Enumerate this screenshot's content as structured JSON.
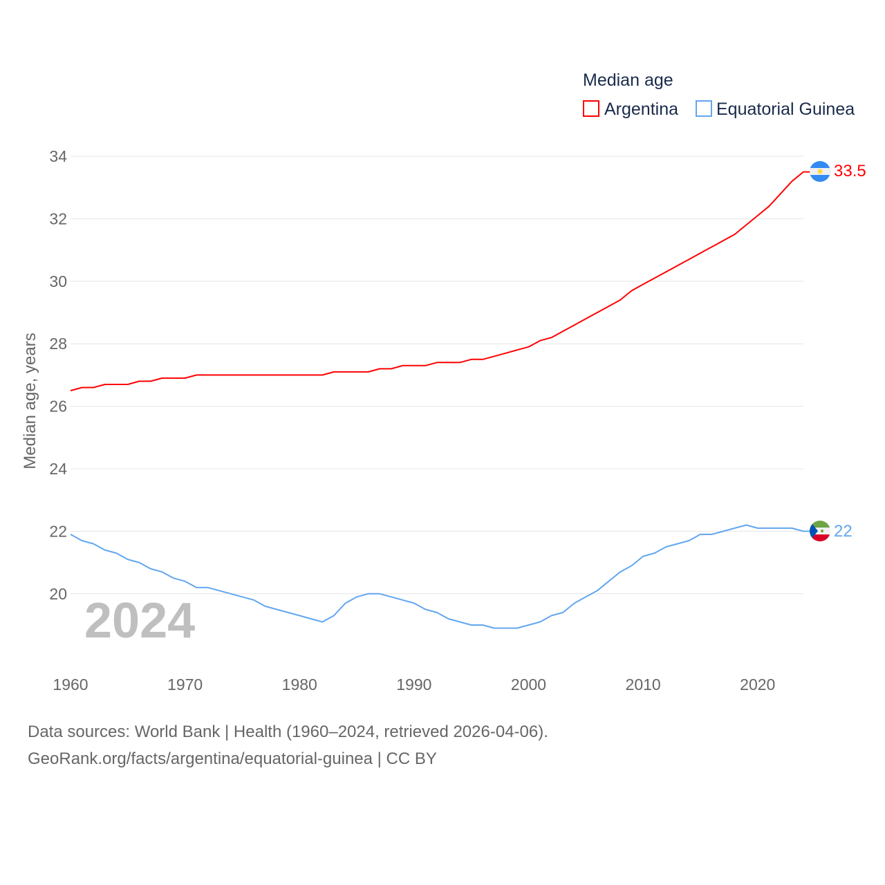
{
  "chart_data": {
    "type": "line",
    "title": "Median age",
    "xlabel": "",
    "ylabel": "Median age, years",
    "xlim": [
      1960,
      2024
    ],
    "ylim": [
      18.5,
      34
    ],
    "yticks": [
      20,
      22,
      24,
      26,
      28,
      30,
      32,
      34
    ],
    "xticks": [
      1960,
      1970,
      1980,
      1990,
      2000,
      2010,
      2020
    ],
    "grid": true,
    "legend_position": "top-right",
    "year_label": "2024",
    "x": [
      1960,
      1961,
      1962,
      1963,
      1964,
      1965,
      1966,
      1967,
      1968,
      1969,
      1970,
      1971,
      1972,
      1973,
      1974,
      1975,
      1976,
      1977,
      1978,
      1979,
      1980,
      1981,
      1982,
      1983,
      1984,
      1985,
      1986,
      1987,
      1988,
      1989,
      1990,
      1991,
      1992,
      1993,
      1994,
      1995,
      1996,
      1997,
      1998,
      1999,
      2000,
      2001,
      2002,
      2003,
      2004,
      2005,
      2006,
      2007,
      2008,
      2009,
      2010,
      2011,
      2012,
      2013,
      2014,
      2015,
      2016,
      2017,
      2018,
      2019,
      2020,
      2021,
      2022,
      2023,
      2024
    ],
    "series": [
      {
        "name": "Argentina",
        "color": "#ff0000",
        "end_label": "33.5",
        "values": [
          26.5,
          26.6,
          26.6,
          26.7,
          26.7,
          26.7,
          26.8,
          26.8,
          26.9,
          26.9,
          26.9,
          27.0,
          27.0,
          27.0,
          27.0,
          27.0,
          27.0,
          27.0,
          27.0,
          27.0,
          27.0,
          27.0,
          27.0,
          27.1,
          27.1,
          27.1,
          27.1,
          27.2,
          27.2,
          27.3,
          27.3,
          27.3,
          27.4,
          27.4,
          27.4,
          27.5,
          27.5,
          27.6,
          27.7,
          27.8,
          27.9,
          28.1,
          28.2,
          28.4,
          28.6,
          28.8,
          29.0,
          29.2,
          29.4,
          29.7,
          29.9,
          30.1,
          30.3,
          30.5,
          30.7,
          30.9,
          31.1,
          31.3,
          31.5,
          31.8,
          32.1,
          32.4,
          32.8,
          33.2,
          33.5
        ]
      },
      {
        "name": "Equatorial Guinea",
        "color": "#62a6ef",
        "end_label": "22",
        "values": [
          21.9,
          21.7,
          21.6,
          21.4,
          21.3,
          21.1,
          21.0,
          20.8,
          20.7,
          20.5,
          20.4,
          20.2,
          20.2,
          20.1,
          20.0,
          19.9,
          19.8,
          19.6,
          19.5,
          19.4,
          19.3,
          19.2,
          19.1,
          19.3,
          19.7,
          19.9,
          20.0,
          20.0,
          19.9,
          19.8,
          19.7,
          19.5,
          19.4,
          19.2,
          19.1,
          19.0,
          19.0,
          18.9,
          18.9,
          18.9,
          19.0,
          19.1,
          19.3,
          19.4,
          19.7,
          19.9,
          20.1,
          20.4,
          20.7,
          20.9,
          21.2,
          21.3,
          21.5,
          21.6,
          21.7,
          21.9,
          21.9,
          22.0,
          22.1,
          22.2,
          22.1,
          22.1,
          22.1,
          22.1,
          22.0
        ]
      }
    ]
  },
  "footer": {
    "line1": "Data sources: World Bank | Health (1960–2024, retrieved 2026-04-06).",
    "line2": "GeoRank.org/facts/argentina/equatorial-guinea | CC BY"
  }
}
